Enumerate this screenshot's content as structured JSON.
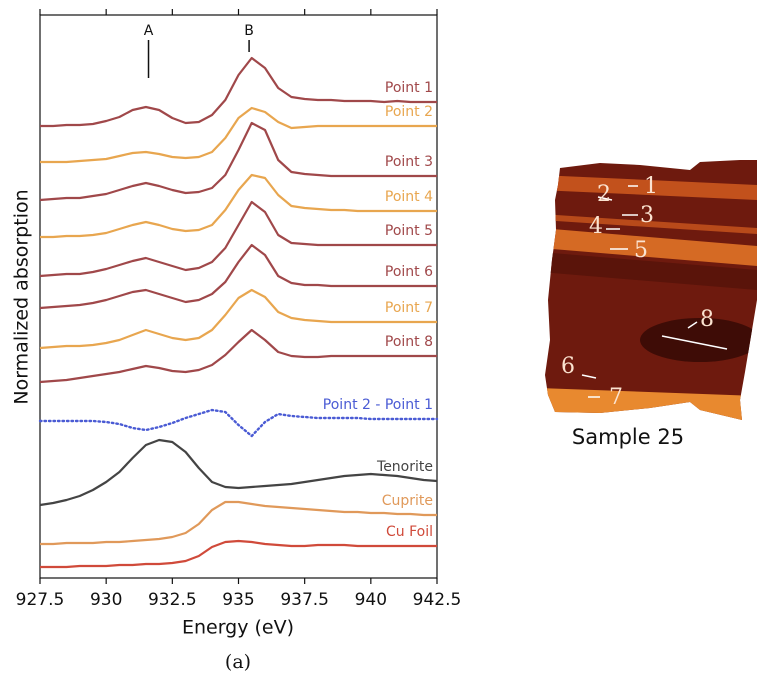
{
  "chart_data": {
    "type": "line",
    "xlabel": "Energy (eV)",
    "ylabel": "Normalized absorption",
    "xlim": [
      927.5,
      942.5
    ],
    "xticks": [
      927.5,
      930,
      932.5,
      935,
      937.5,
      940,
      942.5
    ],
    "ylim": [
      0,
      563
    ],
    "grid": false,
    "x": [
      927.5,
      928,
      928.5,
      929,
      929.5,
      930,
      930.5,
      931,
      931.5,
      932,
      932.5,
      933,
      933.5,
      934,
      934.5,
      935,
      935.5,
      936,
      936.5,
      937,
      937.5,
      938,
      938.5,
      939,
      939.5,
      940,
      940.5,
      941,
      941.5,
      942,
      942.5
    ],
    "annotations": [
      {
        "text": "A",
        "x": 931.6
      },
      {
        "text": "B",
        "x": 935.4
      }
    ],
    "series": [
      {
        "name": "Point 1",
        "color": "#a0484a",
        "style": "solid",
        "values": [
          452,
          452,
          453,
          453,
          454,
          457,
          461,
          468,
          471,
          468,
          460,
          455,
          456,
          463,
          478,
          503,
          520,
          510,
          490,
          481,
          479,
          478,
          478,
          477,
          477,
          477,
          476,
          477,
          476,
          476,
          476
        ]
      },
      {
        "name": "Point 2",
        "color": "#e8a64f",
        "style": "solid",
        "values": [
          416,
          416,
          416,
          417,
          418,
          419,
          422,
          425,
          426,
          424,
          421,
          420,
          421,
          426,
          440,
          460,
          470,
          466,
          456,
          450,
          451,
          452,
          452,
          452,
          452,
          452,
          452,
          452,
          452,
          452,
          452
        ]
      },
      {
        "name": "Point 3",
        "color": "#a0484a",
        "style": "solid",
        "values": [
          378,
          379,
          380,
          380,
          382,
          384,
          388,
          392,
          395,
          392,
          388,
          385,
          386,
          390,
          403,
          428,
          455,
          448,
          418,
          406,
          404,
          403,
          402,
          402,
          402,
          402,
          402,
          402,
          402,
          402,
          402
        ]
      },
      {
        "name": "Point 4",
        "color": "#e8a64f",
        "style": "solid",
        "values": [
          341,
          341,
          342,
          342,
          343,
          345,
          349,
          353,
          356,
          353,
          349,
          347,
          348,
          353,
          368,
          388,
          403,
          400,
          383,
          372,
          370,
          369,
          368,
          368,
          367,
          367,
          367,
          367,
          367,
          367,
          367
        ]
      },
      {
        "name": "Point 5",
        "color": "#a0484a",
        "style": "solid",
        "values": [
          302,
          303,
          304,
          304,
          306,
          309,
          313,
          317,
          320,
          316,
          312,
          308,
          310,
          316,
          330,
          353,
          376,
          366,
          343,
          335,
          334,
          333,
          333,
          333,
          333,
          333,
          333,
          333,
          333,
          333,
          333
        ]
      },
      {
        "name": "Point 6",
        "color": "#a0484a",
        "style": "solid",
        "values": [
          270,
          271,
          272,
          273,
          275,
          278,
          282,
          286,
          288,
          284,
          280,
          276,
          278,
          284,
          296,
          316,
          333,
          323,
          302,
          295,
          293,
          293,
          292,
          292,
          292,
          292,
          292,
          292,
          292,
          292,
          292
        ]
      },
      {
        "name": "Point 7",
        "color": "#e8a64f",
        "style": "solid",
        "values": [
          230,
          231,
          232,
          232,
          233,
          235,
          238,
          243,
          248,
          244,
          240,
          238,
          240,
          248,
          263,
          280,
          288,
          281,
          266,
          260,
          258,
          257,
          256,
          256,
          256,
          256,
          256,
          256,
          256,
          256,
          256
        ]
      },
      {
        "name": "Point 8",
        "color": "#a0484a",
        "style": "solid",
        "values": [
          196,
          197,
          198,
          200,
          202,
          204,
          206,
          209,
          212,
          210,
          207,
          206,
          208,
          213,
          223,
          236,
          248,
          238,
          226,
          222,
          221,
          221,
          222,
          222,
          222,
          222,
          222,
          222,
          222,
          222,
          222
        ]
      },
      {
        "name": "Point 2 - Point 1",
        "color": "#4a5bd4",
        "style": "dotted",
        "values": [
          157,
          157,
          157,
          157,
          157,
          156,
          154,
          150,
          148,
          151,
          155,
          160,
          164,
          168,
          166,
          153,
          142,
          156,
          164,
          162,
          161,
          160,
          160,
          160,
          160,
          159,
          159,
          159,
          159,
          159,
          159
        ]
      },
      {
        "name": "Tenorite",
        "color": "#444444",
        "style": "solid",
        "values": [
          73,
          75,
          78,
          82,
          88,
          96,
          106,
          120,
          133,
          138,
          136,
          126,
          110,
          96,
          91,
          90,
          91,
          92,
          93,
          94,
          96,
          98,
          100,
          102,
          103,
          104,
          103,
          102,
          100,
          98,
          97
        ]
      },
      {
        "name": "Cuprite",
        "color": "#e0995a",
        "style": "solid",
        "values": [
          34,
          34,
          35,
          35,
          35,
          36,
          36,
          37,
          38,
          39,
          41,
          45,
          54,
          68,
          76,
          76,
          74,
          72,
          71,
          70,
          69,
          68,
          67,
          66,
          66,
          65,
          65,
          64,
          64,
          63,
          63
        ]
      },
      {
        "name": "Cu Foil",
        "color": "#d04a3a",
        "style": "solid",
        "values": [
          11,
          11,
          11,
          12,
          12,
          12,
          13,
          13,
          14,
          14,
          15,
          17,
          22,
          31,
          36,
          37,
          36,
          34,
          33,
          32,
          32,
          33,
          33,
          33,
          32,
          32,
          32,
          32,
          32,
          32,
          32
        ]
      }
    ]
  },
  "sample_image": {
    "title": "Sample 25",
    "points": [
      "1",
      "2",
      "3",
      "4",
      "5",
      "6",
      "7",
      "8"
    ]
  },
  "caption": "(a)"
}
